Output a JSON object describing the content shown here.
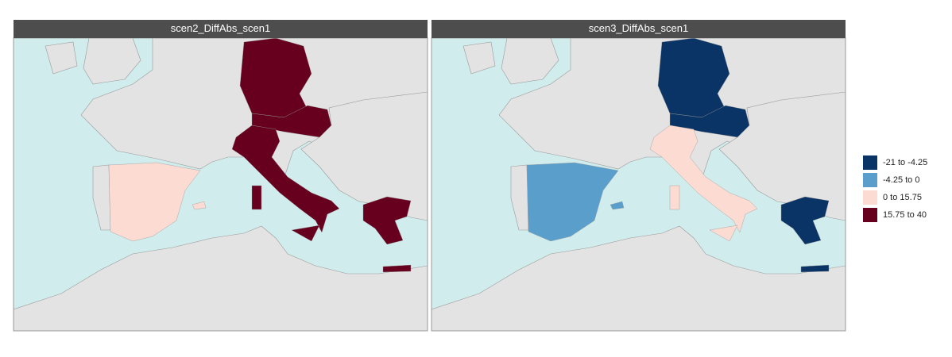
{
  "panels": [
    {
      "title": "scen2_DiffAbs_scen1"
    },
    {
      "title": "scen3_DiffAbs_scen1"
    }
  ],
  "legend": {
    "items": [
      {
        "label": "-21 to -4.25",
        "color": "#0b3466"
      },
      {
        "label": "-4.25 to 0",
        "color": "#5a9fcb"
      },
      {
        "label": "0 to 15.75",
        "color": "#fbdbd2"
      },
      {
        "label": "15.75 to 40",
        "color": "#67001f"
      }
    ]
  }
}
